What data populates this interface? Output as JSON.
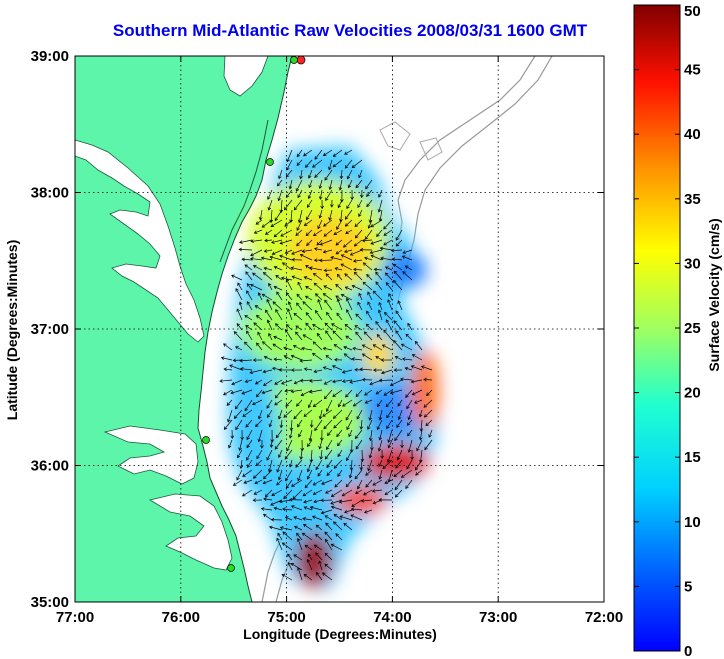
{
  "title": "Southern Mid-Atlantic Raw Velocities 2008/03/31 1600 GMT",
  "x_axis_label": "Longitude (Degrees:Minutes)",
  "y_axis_label": "Latitude (Degrees:Minutes)",
  "colorbar_label": "Surface Velocity (cm/s)",
  "x_ticks": [
    "77:00",
    "76:00",
    "75:00",
    "74:00",
    "73:00",
    "72:00"
  ],
  "y_ticks": [
    "39:00",
    "38:00",
    "37:00",
    "36:00",
    "35:00"
  ],
  "colorbar_ticks": [
    "0",
    "5",
    "10",
    "15",
    "20",
    "25",
    "30",
    "35",
    "40",
    "45",
    "50"
  ],
  "chart_data": {
    "type": "heatmap",
    "xlim": [
      -77,
      -72
    ],
    "ylim": [
      35,
      39
    ],
    "colorbar_range": [
      0,
      50
    ],
    "colormap": "jet",
    "grid": true,
    "land_color": "#5cf5aa",
    "station_colors": [
      "#22dd22",
      "#ff2222"
    ],
    "coverage_regions": [
      {
        "lon": -75.0,
        "lat": 37.4,
        "speed": 20
      },
      {
        "lon": -74.7,
        "lat": 37.7,
        "speed": 28
      },
      {
        "lon": -74.3,
        "lat": 37.2,
        "speed": 10
      },
      {
        "lon": -75.2,
        "lat": 36.5,
        "speed": 14
      },
      {
        "lon": -74.8,
        "lat": 36.1,
        "speed": 20
      },
      {
        "lon": -74.3,
        "lat": 36.4,
        "speed": 8
      },
      {
        "lon": -74.0,
        "lat": 36.0,
        "speed": 42
      },
      {
        "lon": -74.4,
        "lat": 35.6,
        "speed": 38
      },
      {
        "lon": -74.9,
        "lat": 35.3,
        "speed": 48
      },
      {
        "lon": -73.8,
        "lat": 36.6,
        "speed": 35
      }
    ]
  }
}
